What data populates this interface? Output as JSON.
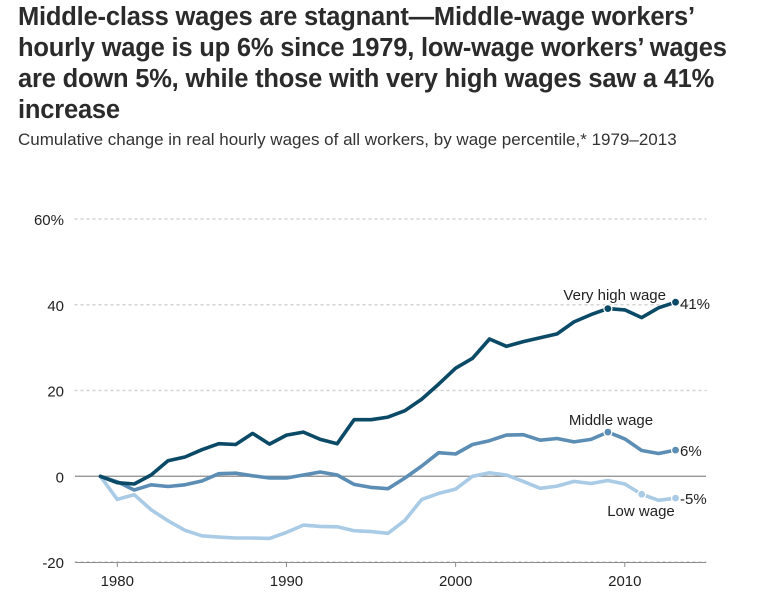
{
  "chart_data": {
    "type": "line",
    "title": "Middle-class wages are stagnant—Middle-wage workers’ hourly wage is up 6% since 1979, low-wage workers’ wages are down 5%, while those with very high wages saw a 41% increase",
    "subtitle": "Cumulative change in real hourly wages of all workers, by wage percentile,* 1979–2013",
    "xlabel": "",
    "ylabel": "",
    "xlim": [
      1977.5,
      2014.8
    ],
    "ylim": [
      -20,
      60
    ],
    "y_ticks": [
      {
        "value": -20,
        "label": "-20"
      },
      {
        "value": 0,
        "label": "0"
      },
      {
        "value": 20,
        "label": "20"
      },
      {
        "value": 40,
        "label": "40"
      },
      {
        "value": 60,
        "label": "60%"
      }
    ],
    "x_ticks": [
      {
        "value": 1980,
        "label": "1980"
      },
      {
        "value": 1990,
        "label": "1990"
      },
      {
        "value": 2000,
        "label": "2000"
      },
      {
        "value": 2010,
        "label": "2010"
      }
    ],
    "grid": true,
    "x": [
      1979,
      1980,
      1981,
      1982,
      1983,
      1984,
      1985,
      1986,
      1987,
      1988,
      1989,
      1990,
      1991,
      1992,
      1993,
      1994,
      1995,
      1996,
      1997,
      1998,
      1999,
      2000,
      2001,
      2002,
      2003,
      2004,
      2005,
      2006,
      2007,
      2008,
      2009,
      2010,
      2011,
      2012,
      2013
    ],
    "series": [
      {
        "key": "high",
        "name": "Very high wage",
        "end_label": "41%",
        "color": "#0b4a67",
        "values": [
          0,
          -1.5,
          -1.8,
          0.3,
          3.6,
          4.5,
          6.2,
          7.6,
          7.4,
          10.0,
          7.5,
          9.6,
          10.3,
          8.6,
          7.6,
          13.2,
          13.2,
          13.8,
          15.3,
          18.0,
          21.5,
          25.2,
          27.5,
          32.0,
          30.3,
          31.4,
          32.3,
          33.2,
          36.0,
          37.7,
          39.1,
          38.8,
          37.0,
          39.3,
          40.6
        ],
        "markers": [
          {
            "x": 2009,
            "y": 39.1
          },
          {
            "x": 2013,
            "y": 40.6
          }
        ]
      },
      {
        "key": "middle",
        "name": "Middle wage",
        "end_label": "6%",
        "color": "#5b8db5",
        "values": [
          0,
          -1.3,
          -3.2,
          -2.0,
          -2.4,
          -2.0,
          -1.1,
          0.6,
          0.7,
          0.1,
          -0.4,
          -0.4,
          0.3,
          1.0,
          0.3,
          -1.9,
          -2.6,
          -2.9,
          -0.4,
          2.4,
          5.5,
          5.2,
          7.4,
          8.3,
          9.6,
          9.7,
          8.4,
          8.8,
          8.0,
          8.6,
          10.3,
          8.7,
          6.0,
          5.3,
          6.1
        ],
        "markers": [
          {
            "x": 2009,
            "y": 10.3
          },
          {
            "x": 2013,
            "y": 6.1
          }
        ]
      },
      {
        "key": "low",
        "name": "Low wage",
        "end_label": "-5%",
        "color": "#a9cbe6",
        "values": [
          0,
          -5.4,
          -4.3,
          -7.8,
          -10.4,
          -12.6,
          -13.9,
          -14.2,
          -14.4,
          -14.4,
          -14.5,
          -13.1,
          -11.4,
          -11.7,
          -11.8,
          -12.7,
          -12.9,
          -13.3,
          -10.3,
          -5.4,
          -4.0,
          -3.0,
          0.0,
          0.8,
          0.3,
          -1.2,
          -2.8,
          -2.3,
          -1.2,
          -1.7,
          -1.0,
          -1.8,
          -4.2,
          -5.6,
          -5.1
        ],
        "markers": [
          {
            "x": 2011,
            "y": -4.2
          },
          {
            "x": 2013,
            "y": -5.1
          }
        ]
      }
    ]
  }
}
